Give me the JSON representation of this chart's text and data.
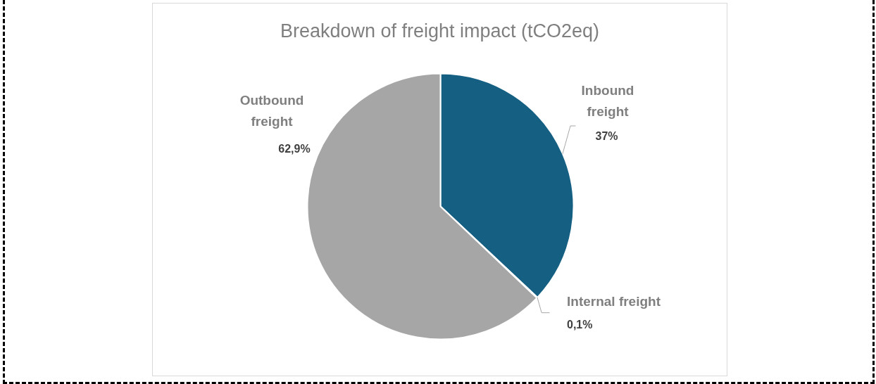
{
  "chart_data": {
    "type": "pie",
    "title": "Breakdown of freight impact (tCO2eq)",
    "categories": [
      "Inbound freight",
      "Internal freight",
      "Outbound freight"
    ],
    "values": [
      37,
      0.1,
      62.9
    ],
    "colors": [
      "#156082",
      "#e97132",
      "#a6a6a6"
    ],
    "value_labels": [
      "37%",
      "0,1%",
      "62,9%"
    ]
  }
}
